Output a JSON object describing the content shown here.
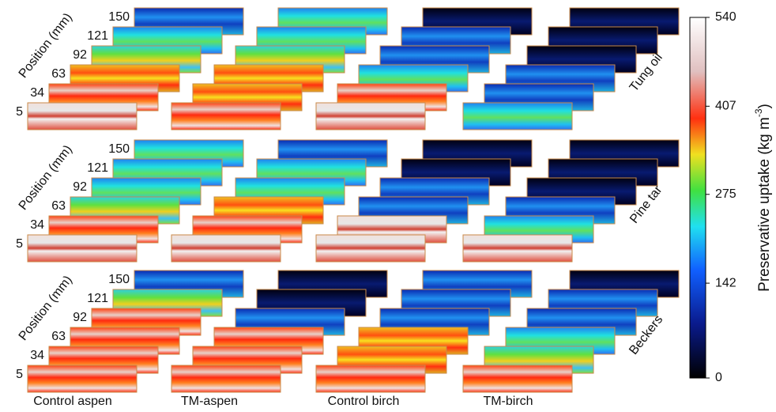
{
  "figure": {
    "columns": [
      "Control aspen",
      "TM-aspen",
      "Control birch",
      "TM-birch"
    ],
    "panels": [
      {
        "treatment": "Tung oil",
        "position_label": "Position (mm)",
        "positions": [
          150,
          121,
          92,
          63,
          34,
          5
        ]
      },
      {
        "treatment": "Pine tar",
        "position_label": "Position (mm)",
        "positions": [
          150,
          121,
          92,
          63,
          34,
          5
        ]
      },
      {
        "treatment": "Beckers",
        "position_label": "Position (mm)",
        "positions": [
          150,
          121,
          92,
          63,
          34,
          5
        ]
      }
    ],
    "colorbar": {
      "label": "Preservative uptake (kg m",
      "label_superscript": "-3",
      "label_end": ")",
      "lim": [
        0,
        540
      ],
      "ticks": [
        0,
        142,
        275,
        407,
        540
      ]
    }
  }
}
